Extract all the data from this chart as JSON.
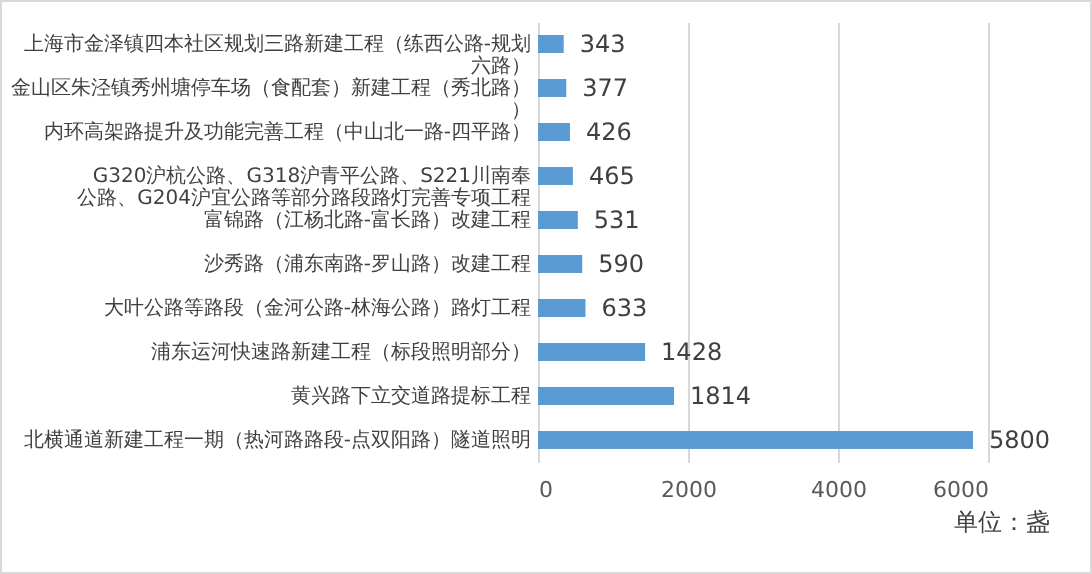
{
  "chart_data": {
    "type": "bar",
    "orientation": "horizontal",
    "categories": [
      "上海市金泽镇四本社区规划三路新建工程（练西公路-规划六路）",
      "金山区朱泾镇秀州塘停车场（食配套）新建工程（秀北路））",
      "内环高架路提升及功能完善工程（中山北一路-四平路）",
      "G320沪杭公路、G318沪青平公路、S221川南奉公路、G204沪宜公路等部分路段路灯完善专项工程",
      "富锦路（江杨北路-富长路）改建工程",
      "沙秀路（浦东南路-罗山路）改建工程",
      "大叶公路等路段（金河公路-林海公路）路灯工程",
      "浦东运河快速路新建工程（标段照明部分）",
      "黄兴路下立交道路提标工程",
      "北横通道新建工程一期（热河路路段-点双阳路）隧道照明"
    ],
    "values": [
      343,
      377,
      426,
      465,
      531,
      590,
      633,
      1428,
      1814,
      5800
    ],
    "color": "#5b9bd5",
    "data_labels": true,
    "xlim": [
      0,
      6000
    ],
    "xticks": [
      0,
      2000,
      4000,
      6000
    ],
    "grid": "x",
    "annotations": [
      "单位：盏"
    ]
  }
}
